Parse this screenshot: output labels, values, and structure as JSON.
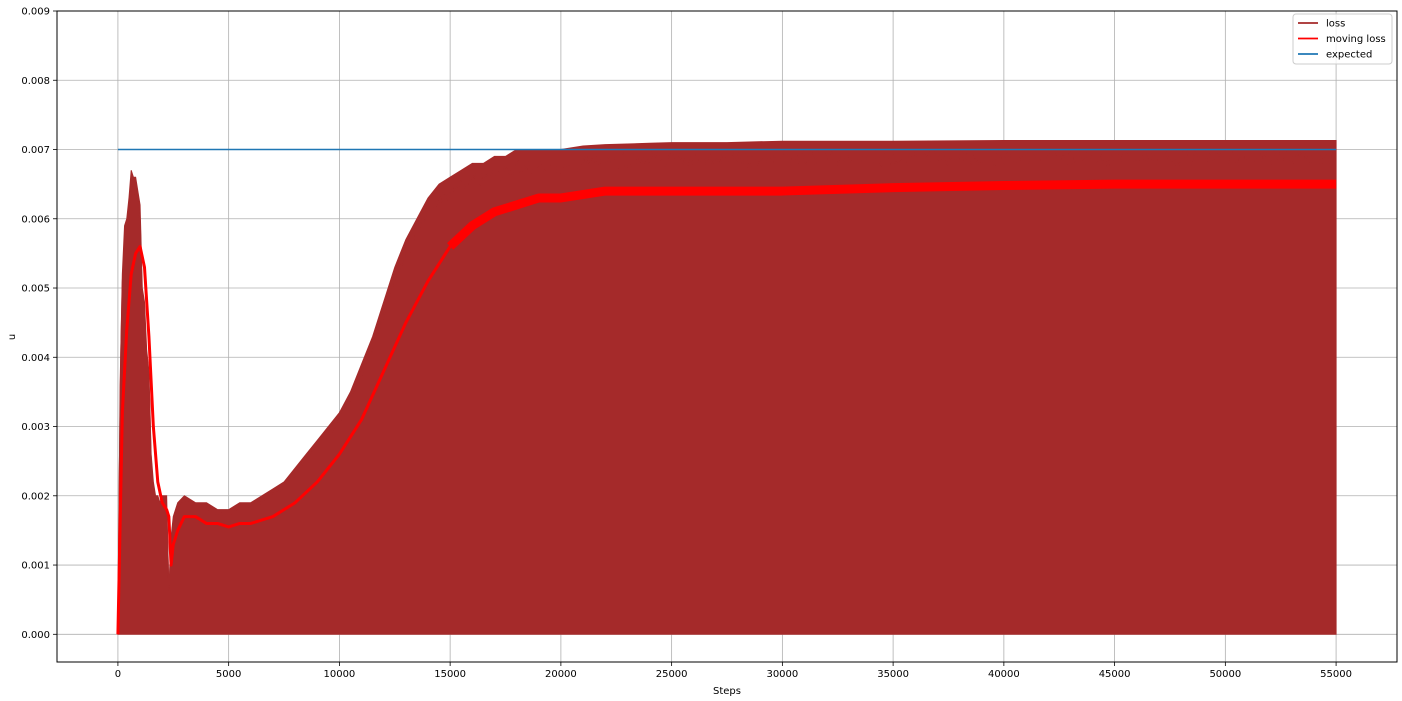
{
  "chart_data": {
    "type": "line",
    "title": "",
    "xlabel": "Steps",
    "ylabel": "u",
    "xlim": [
      -2750,
      57750
    ],
    "ylim": [
      -0.0004,
      0.009
    ],
    "grid": true,
    "legend_position": "top-right",
    "x_ticks": [
      0,
      5000,
      10000,
      15000,
      20000,
      25000,
      30000,
      35000,
      40000,
      45000,
      50000,
      55000
    ],
    "x_tick_labels": [
      "0",
      "5000",
      "10000",
      "15000",
      "20000",
      "25000",
      "30000",
      "35000",
      "40000",
      "45000",
      "50000",
      "55000"
    ],
    "y_ticks": [
      0,
      0.001,
      0.002,
      0.003,
      0.004,
      0.005,
      0.006,
      0.007,
      0.008,
      0.009
    ],
    "y_tick_labels": [
      "0.000",
      "0.001",
      "0.002",
      "0.003",
      "0.004",
      "0.005",
      "0.006",
      "0.007",
      "0.008",
      "0.009"
    ],
    "series": [
      {
        "name": "loss",
        "color": "#a52a2a",
        "style": "oscillating-filled-envelope",
        "lower": 0.0,
        "x": [
          0,
          100,
          200,
          300,
          400,
          500,
          600,
          700,
          800,
          900,
          1000,
          1100,
          1200,
          1300,
          1400,
          1500,
          1600,
          1700,
          1800,
          1900,
          2000,
          2100,
          2200,
          2300,
          2400,
          2500,
          2700,
          3000,
          3500,
          4000,
          4500,
          5000,
          5500,
          6000,
          6500,
          7000,
          7500,
          8000,
          8500,
          9000,
          9500,
          10000,
          10500,
          11000,
          11500,
          12000,
          12500,
          13000,
          13500,
          14000,
          14500,
          15000,
          15500,
          16000,
          16500,
          17000,
          17500,
          18000,
          18500,
          19000,
          19500,
          20000,
          21000,
          22000,
          23000,
          24000,
          25000,
          27500,
          30000,
          35000,
          40000,
          45000,
          50000,
          55000
        ],
        "values": [
          0.0,
          0.0036,
          0.0052,
          0.0059,
          0.006,
          0.0063,
          0.0067,
          0.0066,
          0.0066,
          0.0064,
          0.0062,
          0.005,
          0.0048,
          0.0041,
          0.0038,
          0.0026,
          0.0022,
          0.002,
          0.002,
          0.0019,
          0.002,
          0.002,
          0.002,
          0.0006,
          0.0014,
          0.0017,
          0.0019,
          0.002,
          0.0019,
          0.0019,
          0.0018,
          0.0018,
          0.0019,
          0.0019,
          0.002,
          0.0021,
          0.0022,
          0.0024,
          0.0026,
          0.0028,
          0.003,
          0.0032,
          0.0035,
          0.0039,
          0.0043,
          0.0048,
          0.0053,
          0.0057,
          0.006,
          0.0063,
          0.0065,
          0.0066,
          0.0067,
          0.0068,
          0.0068,
          0.0069,
          0.0069,
          0.007,
          0.007,
          0.007,
          0.007,
          0.007,
          0.00705,
          0.00707,
          0.00708,
          0.00709,
          0.0071,
          0.0071,
          0.00712,
          0.00712,
          0.00713,
          0.00713,
          0.00713,
          0.00713
        ]
      },
      {
        "name": "moving loss",
        "color": "#ff0000",
        "x": [
          0,
          200,
          400,
          600,
          800,
          1000,
          1200,
          1400,
          1600,
          1800,
          2000,
          2200,
          2300,
          2400,
          2500,
          2700,
          3000,
          3500,
          4000,
          4500,
          5000,
          5500,
          6000,
          7000,
          8000,
          9000,
          10000,
          11000,
          12000,
          13000,
          14000,
          15000,
          16000,
          17000,
          18000,
          19000,
          20000,
          22000,
          25000,
          30000,
          35000,
          40000,
          45000,
          50000,
          55000
        ],
        "values": [
          0.0,
          0.0032,
          0.0044,
          0.0052,
          0.0055,
          0.0056,
          0.0053,
          0.0043,
          0.003,
          0.0022,
          0.0019,
          0.0018,
          0.0017,
          0.001,
          0.0013,
          0.0015,
          0.0017,
          0.0017,
          0.0016,
          0.0016,
          0.00155,
          0.0016,
          0.0016,
          0.0017,
          0.0019,
          0.0022,
          0.0026,
          0.0031,
          0.0038,
          0.0045,
          0.0051,
          0.0056,
          0.0059,
          0.0061,
          0.0062,
          0.0063,
          0.0063,
          0.0064,
          0.0064,
          0.0064,
          0.00645,
          0.00648,
          0.0065,
          0.0065,
          0.0065
        ]
      },
      {
        "name": "expected",
        "color": "#1f77b4",
        "x": [
          0,
          55000
        ],
        "values": [
          0.007,
          0.007
        ]
      }
    ]
  }
}
